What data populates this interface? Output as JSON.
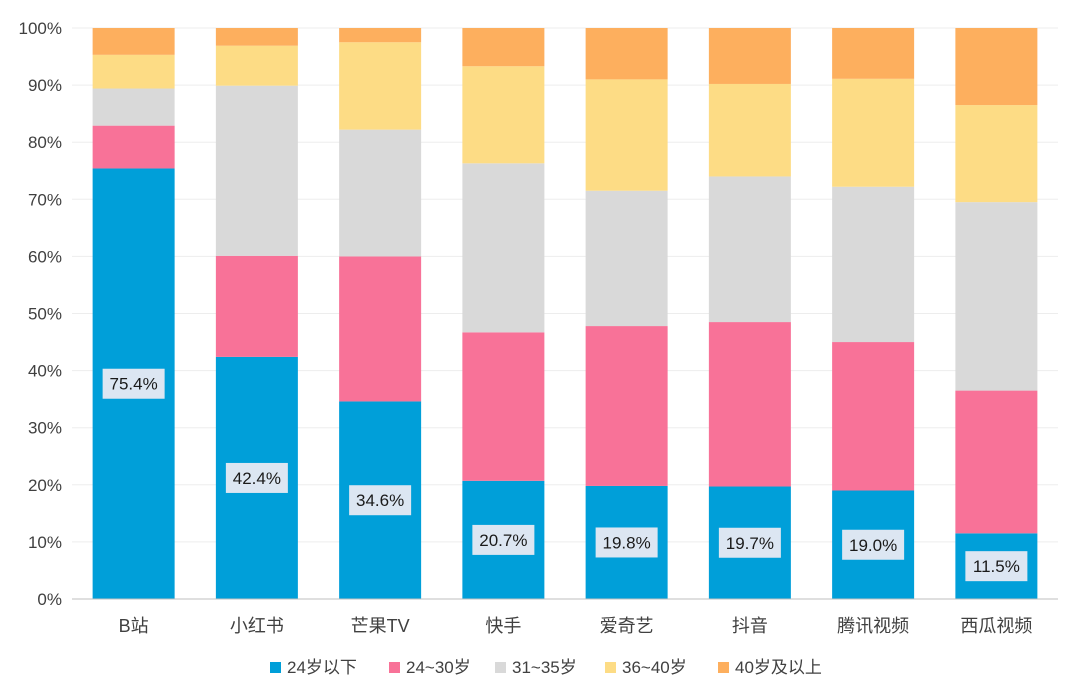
{
  "chart_data": {
    "type": "bar",
    "stacked": true,
    "percent": true,
    "categories": [
      "B站",
      "小红书",
      "芒果TV",
      "快手",
      "爱奇艺",
      "抖音",
      "腾讯视频",
      "西瓜视频"
    ],
    "series": [
      {
        "name": "24岁以下",
        "color": "#009FD9",
        "values": [
          75.4,
          42.4,
          34.6,
          20.7,
          19.8,
          19.7,
          19.0,
          11.5
        ]
      },
      {
        "name": "24~30岁",
        "color": "#F87298",
        "values": [
          7.5,
          17.7,
          25.4,
          26.0,
          28.0,
          28.8,
          26.0,
          25.0
        ]
      },
      {
        "name": "31~35岁",
        "color": "#D9D9D9",
        "values": [
          6.5,
          29.8,
          22.2,
          29.6,
          23.7,
          25.5,
          27.2,
          33.0
        ]
      },
      {
        "name": "36~40岁",
        "color": "#FDDC85",
        "values": [
          5.9,
          7.0,
          15.3,
          17.0,
          19.5,
          16.2,
          18.9,
          17.0
        ]
      },
      {
        "name": "40岁及以上",
        "color": "#FDAF5E",
        "values": [
          4.7,
          3.1,
          2.5,
          6.7,
          9.0,
          9.8,
          8.9,
          13.5
        ]
      }
    ],
    "data_labels": [
      "75.4%",
      "42.4%",
      "34.6%",
      "20.7%",
      "19.8%",
      "19.7%",
      "19.0%",
      "11.5%"
    ],
    "y_ticks": [
      "0%",
      "10%",
      "20%",
      "30%",
      "40%",
      "50%",
      "60%",
      "70%",
      "80%",
      "90%",
      "100%"
    ],
    "ylim": [
      0,
      100
    ],
    "grid": true,
    "legend_position": "bottom",
    "title": "",
    "xlabel": "",
    "ylabel": ""
  }
}
